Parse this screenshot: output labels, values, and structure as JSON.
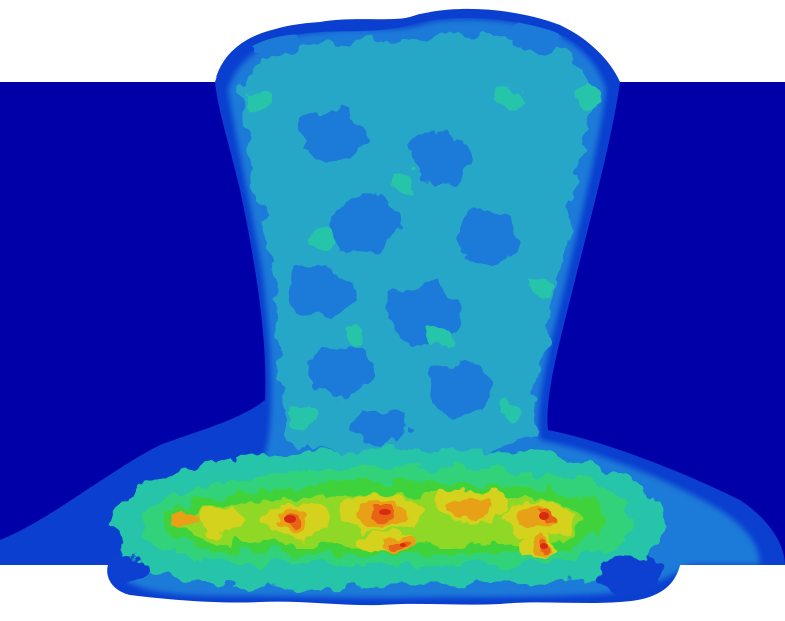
{
  "visualization": {
    "colormap": [
      "#0000a8",
      "#0a3fd0",
      "#1c7ad8",
      "#26a7c8",
      "#28c4a8",
      "#33d27a",
      "#3fd23a",
      "#8fd828",
      "#d4d21c",
      "#e8a018",
      "#e86414",
      "#d82a10"
    ],
    "background_color": "#ffffff",
    "plate_color": "#0000a8"
  }
}
